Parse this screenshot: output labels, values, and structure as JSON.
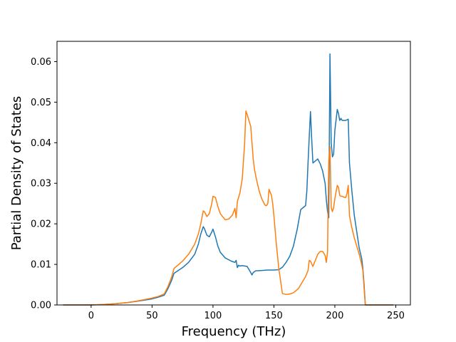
{
  "chart_data": {
    "type": "line",
    "title": "",
    "xlabel": "Frequency (THz)",
    "ylabel": "Partial Density of States",
    "xlim": [
      -28,
      262
    ],
    "ylim": [
      0,
      0.065
    ],
    "xticks": [
      0,
      50,
      100,
      150,
      200,
      250
    ],
    "xtick_labels": [
      "0",
      "50",
      "100",
      "150",
      "200",
      "250"
    ],
    "yticks": [
      0,
      0.01,
      0.02,
      0.03,
      0.04,
      0.05,
      0.06
    ],
    "ytick_labels": [
      "0.00",
      "0.01",
      "0.02",
      "0.03",
      "0.04",
      "0.05",
      "0.06"
    ],
    "grid": false,
    "legend": "none",
    "series": [
      {
        "color": "#1f77b4",
        "x": [
          -23,
          0,
          10,
          20,
          30,
          40,
          50,
          55,
          60,
          63,
          66,
          68,
          70,
          75,
          80,
          85,
          88,
          90,
          92,
          93,
          95,
          97,
          99,
          100,
          102,
          104,
          106,
          110,
          115,
          118,
          119,
          120,
          121,
          122,
          124,
          126,
          128,
          130,
          132,
          133,
          135,
          140,
          145,
          150,
          154,
          157,
          160,
          163,
          166,
          169,
          172,
          174,
          176,
          177,
          178,
          179,
          180,
          181,
          182,
          184,
          186,
          188,
          190,
          192,
          193,
          194,
          195,
          196,
          197,
          198,
          199,
          200,
          202,
          203,
          204,
          205,
          206,
          207,
          209,
          211,
          212,
          214,
          216,
          218,
          220,
          222,
          223,
          224,
          225,
          226,
          230,
          248
        ],
        "values": [
          0,
          0,
          0.0001,
          0.0003,
          0.0006,
          0.001,
          0.0015,
          0.0019,
          0.0024,
          0.004,
          0.006,
          0.0078,
          0.0082,
          0.0092,
          0.0105,
          0.0125,
          0.015,
          0.0175,
          0.0193,
          0.0188,
          0.0172,
          0.0168,
          0.018,
          0.0187,
          0.0168,
          0.0145,
          0.013,
          0.0116,
          0.0108,
          0.0105,
          0.011,
          0.0092,
          0.0098,
          0.0096,
          0.0097,
          0.0096,
          0.0095,
          0.0085,
          0.0074,
          0.008,
          0.0084,
          0.0085,
          0.0086,
          0.0086,
          0.0087,
          0.0093,
          0.0105,
          0.012,
          0.0145,
          0.0185,
          0.0235,
          0.024,
          0.0245,
          0.028,
          0.035,
          0.0415,
          0.0477,
          0.041,
          0.035,
          0.0355,
          0.036,
          0.0348,
          0.033,
          0.03,
          0.026,
          0.023,
          0.0215,
          0.0619,
          0.04,
          0.0365,
          0.0372,
          0.043,
          0.0482,
          0.0472,
          0.0455,
          0.046,
          0.0455,
          0.0455,
          0.0455,
          0.0458,
          0.035,
          0.028,
          0.022,
          0.018,
          0.014,
          0.0115,
          0.009,
          0.005,
          0,
          0,
          0,
          0
        ]
      },
      {
        "color": "#ff7f0e",
        "x": [
          -23,
          0,
          10,
          20,
          30,
          40,
          50,
          55,
          60,
          63,
          66,
          68,
          70,
          75,
          80,
          85,
          88,
          90,
          92,
          93,
          95,
          97,
          99,
          100,
          102,
          104,
          106,
          110,
          113,
          116,
          118,
          119,
          120,
          122,
          124,
          125,
          126,
          127,
          128,
          130,
          131,
          132,
          133,
          134,
          136,
          138,
          140,
          142,
          143,
          144,
          145,
          146,
          148,
          149,
          150,
          152,
          154,
          157,
          160,
          163,
          166,
          170,
          174,
          176,
          178,
          179,
          180,
          182,
          184,
          186,
          188,
          190,
          192,
          193,
          194,
          195,
          196,
          197,
          198,
          199,
          200,
          202,
          203,
          204,
          205,
          206,
          208,
          209,
          210,
          211,
          212,
          214,
          216,
          218,
          220,
          222,
          223,
          224,
          225,
          226,
          230,
          248
        ],
        "values": [
          0,
          0,
          0.0001,
          0.0003,
          0.0006,
          0.0011,
          0.0017,
          0.0021,
          0.0027,
          0.0045,
          0.0068,
          0.009,
          0.0095,
          0.0108,
          0.0125,
          0.015,
          0.0175,
          0.02,
          0.0232,
          0.023,
          0.0218,
          0.0225,
          0.025,
          0.0268,
          0.0265,
          0.0243,
          0.0225,
          0.021,
          0.0212,
          0.0222,
          0.0238,
          0.0215,
          0.0255,
          0.0275,
          0.031,
          0.0355,
          0.04,
          0.0478,
          0.047,
          0.045,
          0.044,
          0.04,
          0.036,
          0.0335,
          0.0305,
          0.028,
          0.0262,
          0.025,
          0.0245,
          0.0245,
          0.025,
          0.0285,
          0.027,
          0.025,
          0.022,
          0.015,
          0.009,
          0.0028,
          0.0026,
          0.0027,
          0.003,
          0.004,
          0.006,
          0.007,
          0.0085,
          0.011,
          0.0108,
          0.0095,
          0.011,
          0.0125,
          0.0132,
          0.0132,
          0.0122,
          0.0105,
          0.013,
          0.0355,
          0.039,
          0.024,
          0.023,
          0.024,
          0.0262,
          0.0295,
          0.029,
          0.027,
          0.0268,
          0.0268,
          0.0265,
          0.0265,
          0.0275,
          0.0295,
          0.022,
          0.019,
          0.0165,
          0.0145,
          0.0125,
          0.01,
          0.0085,
          0.004,
          0,
          0,
          0,
          0
        ]
      }
    ]
  }
}
